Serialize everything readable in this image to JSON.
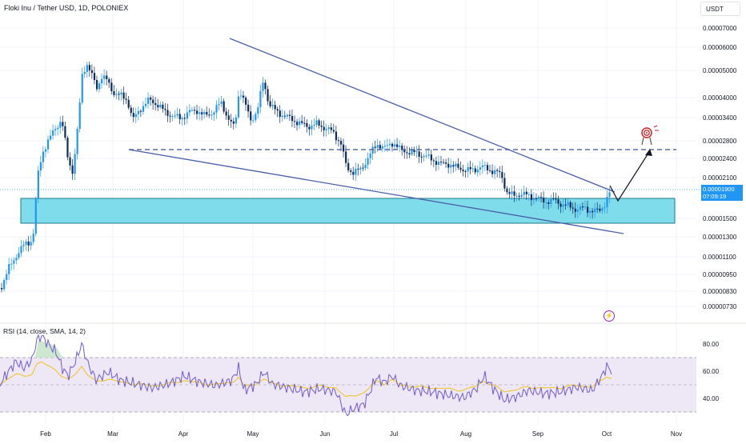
{
  "header": {
    "title": "Floki Inu / Tether USD, 1D, POLONIEX",
    "currency": "USDT"
  },
  "price_axis": {
    "labels": [
      "0.00007000",
      "0.00006000",
      "0.00005000",
      "0.00004000",
      "0.00003400",
      "0.00002800",
      "0.00002400",
      "0.00002100",
      "0.00001500",
      "0.00001300",
      "0.00001100",
      "0.00000950",
      "0.00000830",
      "0.00000730"
    ],
    "current_price": "0.00001900",
    "countdown": "07:09:19",
    "current_color": "#2196f3"
  },
  "rsi_panel": {
    "label": "RSI (14, close, SMA, 14, 2)",
    "levels": [
      "80.00",
      "60.00",
      "40.00"
    ]
  },
  "time_axis": {
    "labels": [
      "Feb",
      "Mar",
      "Apr",
      "May",
      "Jun",
      "Jul",
      "Aug",
      "Sep",
      "Oct",
      "Nov"
    ]
  },
  "colors": {
    "candle_up": "#2196f3",
    "candle_down": "#0d2b5e",
    "trendline": "#4a5fa8",
    "support_zone_fill": "#7fdcea",
    "rsi_line": "#6e5bd0",
    "rsi_ma": "#f0c419",
    "rsi_band": "#ede7f6"
  },
  "icons": {
    "flash": "lightning-icon",
    "target": "target-icon"
  }
}
